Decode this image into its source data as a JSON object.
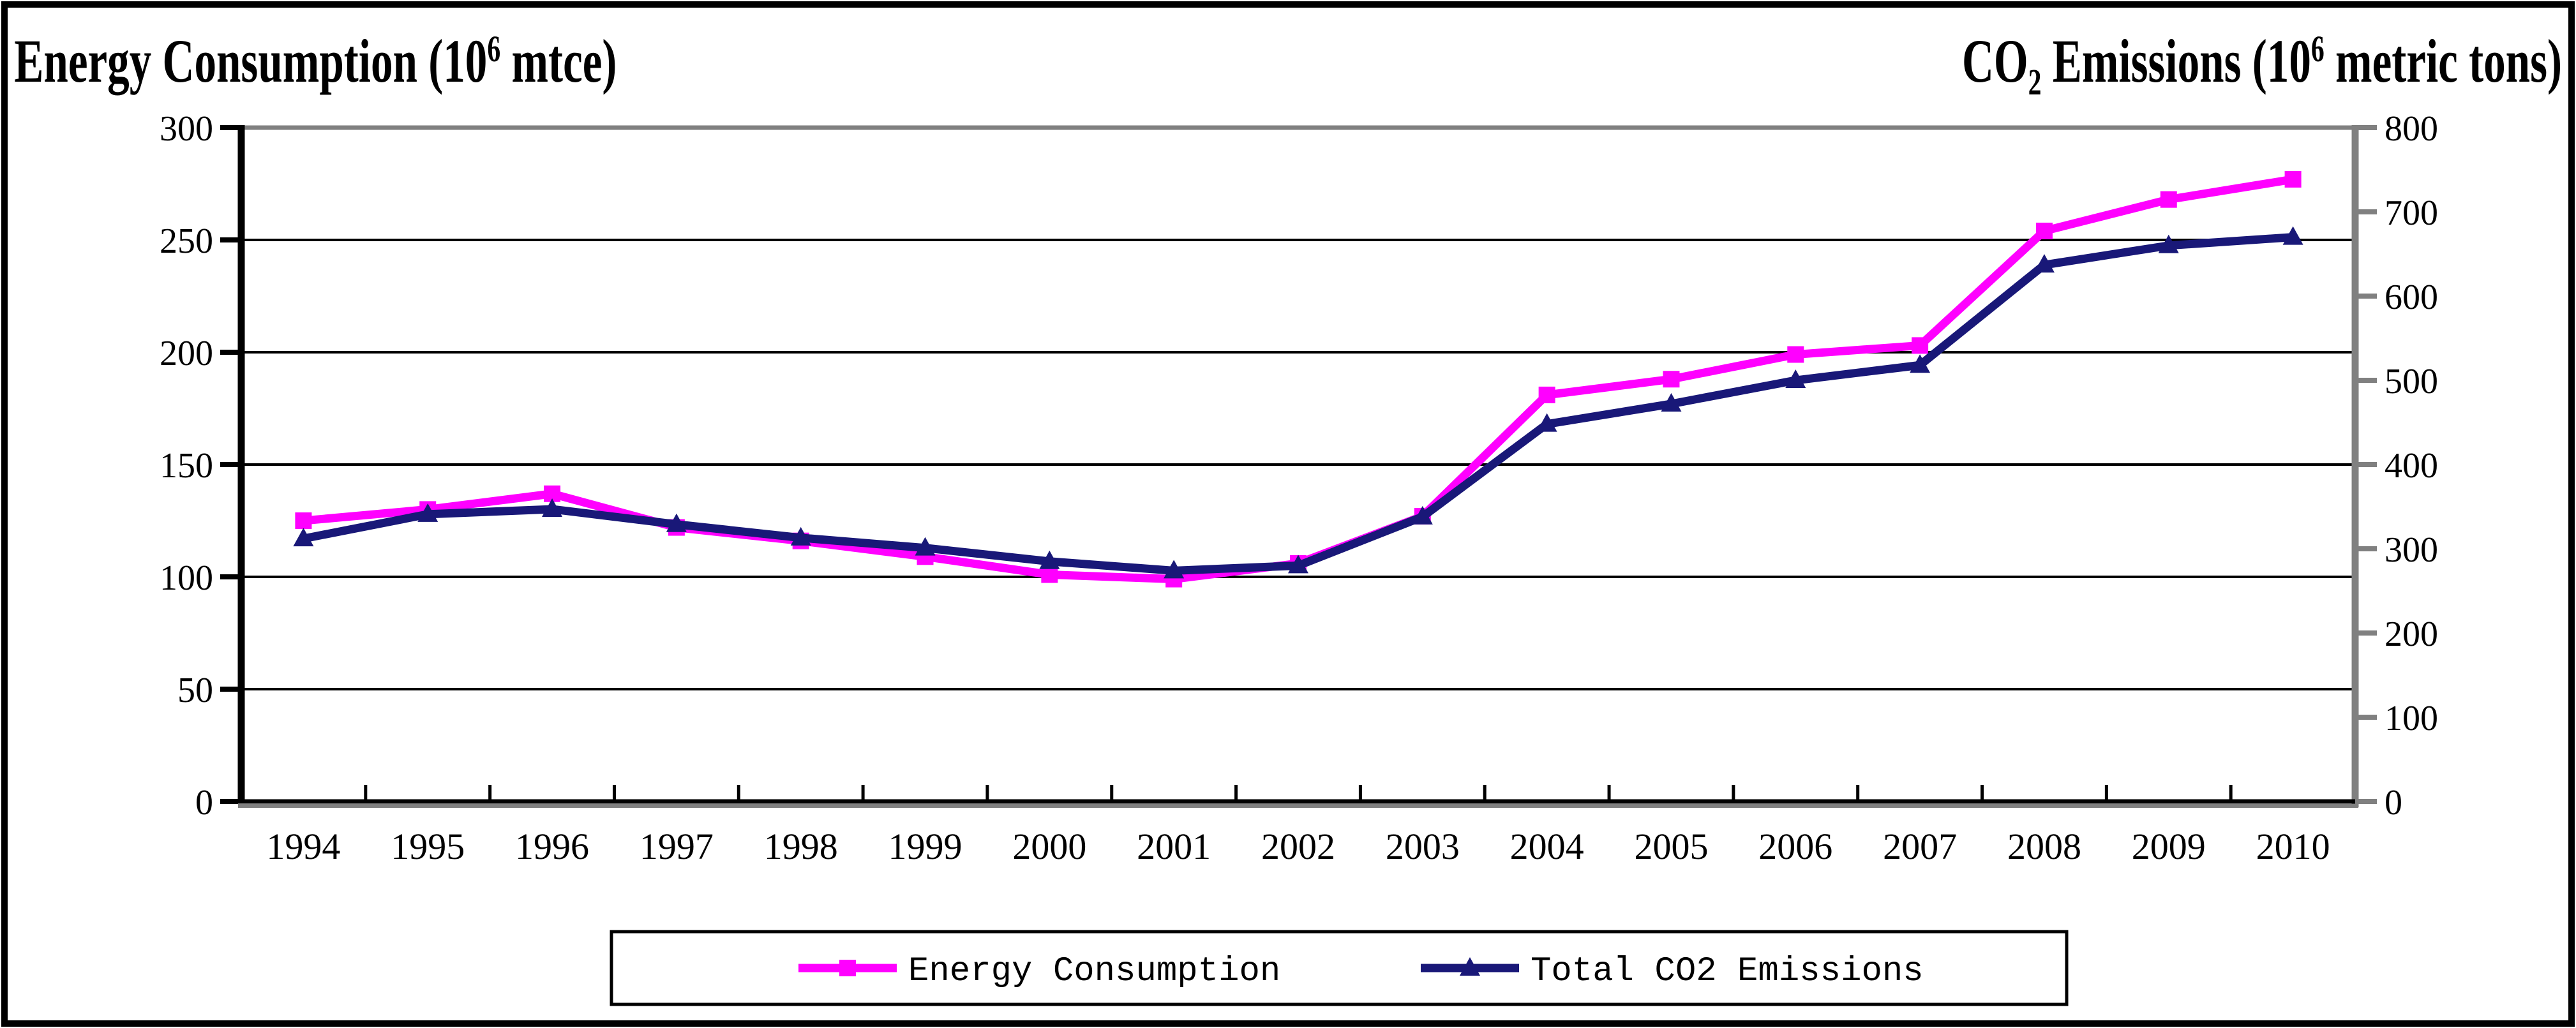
{
  "chart_data": {
    "type": "line",
    "x": [
      "1994",
      "1995",
      "1996",
      "1997",
      "1998",
      "1999",
      "2000",
      "2001",
      "2002",
      "2003",
      "2004",
      "2005",
      "2006",
      "2007",
      "2008",
      "2009",
      "2010"
    ],
    "series": [
      {
        "name": "Energy Consumption",
        "axis": "left",
        "color": "#FF00FF",
        "marker": "square",
        "values": [
          125,
          130,
          137,
          122,
          116,
          109,
          101,
          99,
          106,
          127,
          181,
          188,
          199,
          203,
          254,
          268,
          277
        ]
      },
      {
        "name": "Total CO2 Emissions",
        "axis": "right",
        "color": "#191878",
        "marker": "triangle",
        "values": [
          312,
          341,
          347,
          329,
          313,
          301,
          285,
          274,
          280,
          338,
          448,
          472,
          500,
          518,
          637,
          660,
          670
        ]
      }
    ],
    "left_axis": {
      "title": {
        "pre": "Energy Consumption (10",
        "sup": "6",
        "post": " mtce)"
      },
      "min": 0,
      "max": 300,
      "step": 50,
      "tick_labels": [
        "0",
        "50",
        "100",
        "150",
        "200",
        "250",
        "300"
      ]
    },
    "right_axis": {
      "title": {
        "pre": "CO",
        "sub": "2",
        "mid": " Emissions (10",
        "sup": "6",
        "post": " metric tons)"
      },
      "min": 0,
      "max": 800,
      "step": 100,
      "tick_labels": [
        "0",
        "100",
        "200",
        "300",
        "400",
        "500",
        "600",
        "700",
        "800"
      ]
    },
    "legend": {
      "position": "bottom",
      "entries": [
        "Energy Consumption",
        "Total CO2 Emissions"
      ]
    },
    "grid": {
      "horizontal": true,
      "vertical": false,
      "gridline_color": "#000000"
    },
    "frame_color": "#808080",
    "axis_color": "#000000",
    "background": "#ffffff"
  }
}
